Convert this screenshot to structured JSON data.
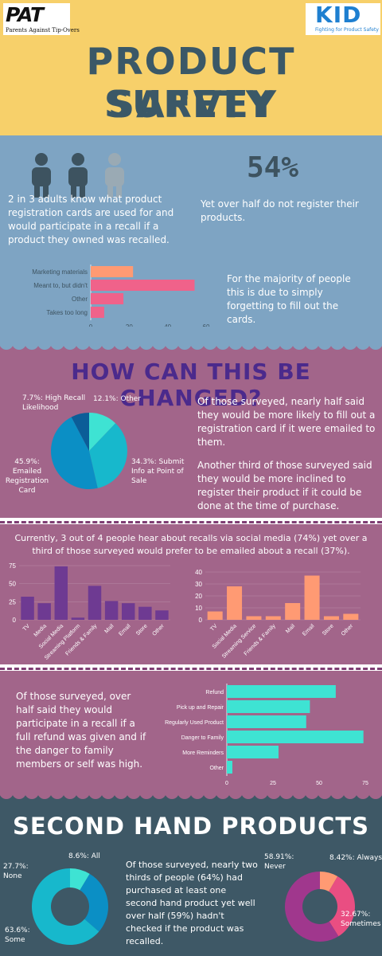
{
  "header": {
    "logo_left": {
      "mark": "PAT",
      "tagline": "Parents Against Tip-Overs"
    },
    "logo_right": {
      "mark": "KID",
      "tagline": "Fighting for Product Safety"
    },
    "title_line1": "PRODUCT SAFETY",
    "title_line2": "SURVEY"
  },
  "section1": {
    "stat": "54%",
    "left_text": "2 in 3 adults know what product registration cards are used for and would participate in a recall if a product they owned was recalled.",
    "right_text": "Yet over half do not register their products.",
    "chart_note": "For the majority of people this is due to simply forgetting to fill out the cards."
  },
  "section2": {
    "heading": "HOW CAN THIS BE CHANGED?",
    "text1": "Of those surveyed, nearly half said they would be more likely to fill out a registration card if it were emailed to them.",
    "text2": "Another third of those surveyed said they would be more inclined to register their product if it could be done at the time of purchase.",
    "pie_labels": [
      "7.7%: High Recall Likelihood",
      "12.1%: Other",
      "34.3%: Submit Info at Point of Sale",
      "45.9%: Emailed Registration Card"
    ]
  },
  "section3": {
    "text": "Currently, 3 out of 4 people hear about recalls via social media (74%) yet over a third of those surveyed would prefer to be emailed about a recall (37%)."
  },
  "section4": {
    "text": "Of those surveyed, over half said they would participate in a recall if a full refund was given and if the danger to family members or self was high."
  },
  "section5": {
    "heading": "SECOND HAND PRODUCTS",
    "text": "Of those surveyed, nearly two thirds of people (64%) had purchased at least one second hand product yet well over half (59%) hadn't checked if the product was recalled.",
    "donut1_labels": [
      "8.6%: All",
      "27.7%: None",
      "63.6%: Some"
    ],
    "donut2_labels": [
      "58.91%: Never",
      "8.42%: Always",
      "32.67%: Sometimes"
    ]
  },
  "colors": {
    "yellow": "#f7d06a",
    "blue": "#7ea4c3",
    "mauve": "#a2658a",
    "slate": "#3e5866",
    "title": "#3b5867",
    "heading_purple": "#4b2a8c",
    "bar_orange": "#ff9a73",
    "bar_pink": "#f0628a",
    "bar_purple": "#6e3a92",
    "bar_teal": "#3ee3d3",
    "pie_teal": "#3ee3d3",
    "pie_cyan": "#17b8cc",
    "pie_blue": "#0b8fc5",
    "pie_navy": "#0b5d98",
    "donut_pink": "#e94e82",
    "donut_purple": "#a0378d"
  },
  "chart_data": [
    {
      "type": "bar",
      "orientation": "horizontal",
      "categories": [
        "Marketing materials",
        "Meant to, but didn't",
        "Other",
        "Takes too long"
      ],
      "values": [
        22,
        54,
        17,
        7
      ],
      "xlim": [
        0,
        60
      ],
      "xticks": [
        0,
        20,
        40,
        60
      ]
    },
    {
      "type": "pie",
      "labels": [
        "Other",
        "Submit Info at Point of Sale",
        "Emailed Registration Card",
        "High Recall Likelihood"
      ],
      "values": [
        12.1,
        34.3,
        45.9,
        7.7
      ]
    },
    {
      "type": "bar",
      "categories": [
        "TV",
        "Media",
        "Social Media",
        "Streaming Platform",
        "Friends & Family",
        "Mail",
        "Email",
        "Store",
        "Other"
      ],
      "values": [
        32,
        23,
        74,
        3,
        47,
        26,
        23,
        18,
        13
      ],
      "ylim": [
        0,
        75
      ],
      "yticks": [
        0,
        25,
        50,
        75
      ]
    },
    {
      "type": "bar",
      "categories": [
        "TV",
        "Social Media",
        "Streaming Service",
        "Friends & Family",
        "Mail",
        "Email",
        "Store",
        "Other"
      ],
      "values": [
        7,
        28,
        3,
        3,
        14,
        37,
        3,
        5
      ],
      "ylim": [
        0,
        40
      ],
      "yticks": [
        0,
        10,
        20,
        30,
        40
      ]
    },
    {
      "type": "bar",
      "orientation": "horizontal",
      "categories": [
        "Refund",
        "Pick up and Repair",
        "Regularly Used Product",
        "Danger to Family",
        "More Reminders",
        "Other"
      ],
      "values": [
        59,
        45,
        43,
        74,
        28,
        3
      ],
      "xlim": [
        0,
        75
      ],
      "xticks": [
        0,
        25,
        50,
        75
      ]
    },
    {
      "type": "pie",
      "donut": true,
      "labels": [
        "All",
        "None",
        "Some"
      ],
      "values": [
        8.6,
        27.7,
        63.6
      ]
    },
    {
      "type": "pie",
      "donut": true,
      "labels": [
        "Always",
        "Sometimes",
        "Never"
      ],
      "values": [
        8.42,
        32.67,
        58.91
      ]
    }
  ]
}
